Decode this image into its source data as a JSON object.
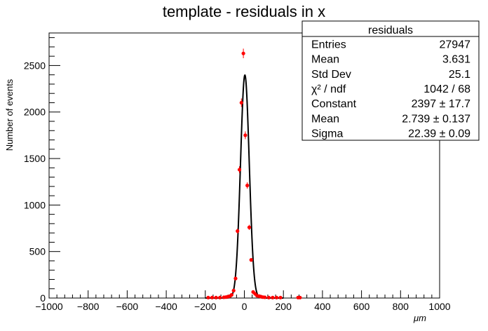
{
  "chart_data": {
    "type": "scatter",
    "title": "template - residuals in x",
    "xlabel": "μm",
    "ylabel": "Number of events",
    "xlim": [
      -1000,
      1000
    ],
    "ylim": [
      0,
      2850
    ],
    "xticks": [
      -1000,
      -800,
      -600,
      -400,
      -200,
      0,
      200,
      400,
      600,
      800,
      1000
    ],
    "yticks": [
      0,
      500,
      1000,
      1500,
      2000,
      2500
    ],
    "grid": false,
    "series": [
      {
        "kind": "points",
        "color": "#ff0000",
        "x": [
          -185,
          -165,
          -145,
          -125,
          -105,
          -95,
          -85,
          -75,
          -65,
          -55,
          -45,
          -35,
          -25,
          -15,
          -5,
          5,
          15,
          25,
          35,
          45,
          55,
          65,
          75,
          85,
          95,
          105,
          125,
          145,
          165,
          185,
          275,
          285
        ],
        "y": [
          5,
          5,
          5,
          5,
          8,
          10,
          15,
          20,
          35,
          80,
          210,
          720,
          1380,
          2100,
          2630,
          1750,
          1210,
          760,
          410,
          65,
          45,
          25,
          20,
          15,
          10,
          8,
          5,
          5,
          5,
          5,
          5,
          5
        ]
      },
      {
        "kind": "fit",
        "color": "#000000",
        "function": "gaus",
        "constant": 2397,
        "mean": 2.739,
        "sigma": 22.39
      }
    ],
    "stats_box": {
      "title": "residuals",
      "position": "top-right",
      "rows": [
        {
          "label": "Entries",
          "value": "27947"
        },
        {
          "label": "Mean",
          "value": "3.631"
        },
        {
          "label": "Std Dev",
          "value": "25.1"
        },
        {
          "label": "χ² / ndf",
          "value": "1042 / 68"
        },
        {
          "label": "Constant",
          "value": "2397 ± 17.7"
        },
        {
          "label": "Mean",
          "value": "2.739 ± 0.137"
        },
        {
          "label": "Sigma",
          "value": "22.39 ± 0.09"
        }
      ]
    }
  }
}
